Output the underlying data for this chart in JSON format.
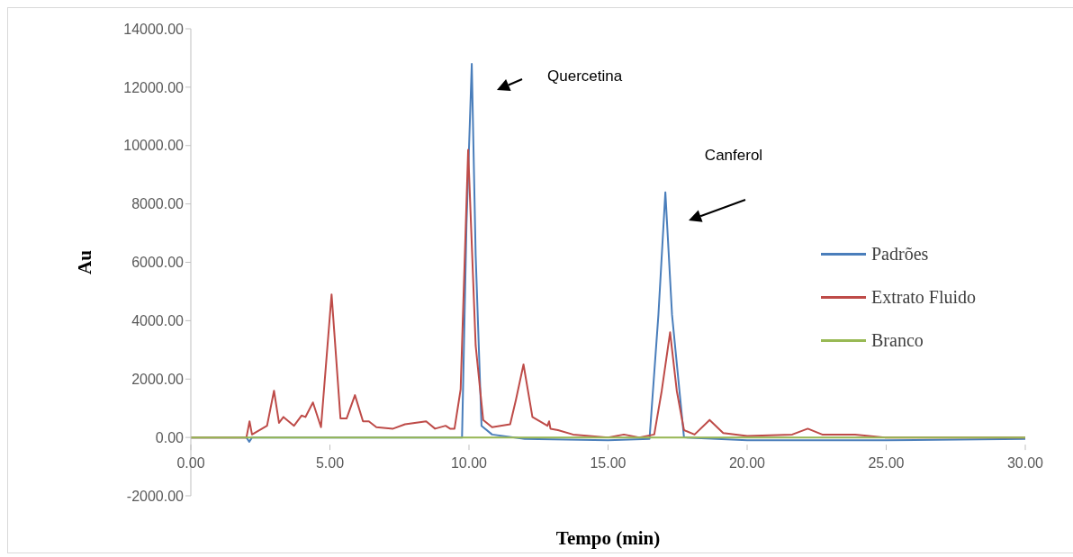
{
  "chart_data": {
    "type": "line",
    "xlabel": "Tempo (min)",
    "ylabel": "Au",
    "xlim": [
      0,
      30
    ],
    "xticks": [
      {
        "value": 0,
        "label": "0.00"
      },
      {
        "value": 5,
        "label": "5.00"
      },
      {
        "value": 10,
        "label": "10.00"
      },
      {
        "value": 15,
        "label": "15.00"
      },
      {
        "value": 20,
        "label": "20.00"
      },
      {
        "value": 25,
        "label": "25.00"
      },
      {
        "value": 30,
        "label": "30.00"
      }
    ],
    "ylim": [
      -2000,
      14000
    ],
    "yticks": [
      {
        "value": -2000,
        "label": "-2000.00"
      },
      {
        "value": 0,
        "label": "0.00"
      },
      {
        "value": 2000,
        "label": "2000.00"
      },
      {
        "value": 4000,
        "label": "4000.00"
      },
      {
        "value": 6000,
        "label": "6000.00"
      },
      {
        "value": 8000,
        "label": "8000.00"
      },
      {
        "value": 10000,
        "label": "10000.00"
      },
      {
        "value": 12000,
        "label": "12000.00"
      },
      {
        "value": 14000,
        "label": "14000.00"
      }
    ],
    "legend": "right",
    "annotations": [
      "Quercetina",
      "Canferol"
    ],
    "series": [
      {
        "name": "Padrões",
        "color": "#4a7ebb",
        "x": [
          0,
          2.0,
          2.1,
          2.2,
          5,
          9.75,
          9.91,
          10.1,
          10.24,
          10.45,
          10.83,
          12,
          15,
          16.49,
          16.81,
          17.06,
          17.3,
          17.73,
          20,
          22,
          25,
          30
        ],
        "values": [
          0,
          0,
          -150,
          0,
          0,
          0,
          7300,
          12800,
          6250,
          400,
          100,
          -50,
          -100,
          -50,
          4200,
          8400,
          4200,
          0,
          -100,
          -100,
          -100,
          -50
        ]
      },
      {
        "name": "Extrato Fluido",
        "color": "#be4b48",
        "x": [
          0,
          2.0,
          2.11,
          2.2,
          2.74,
          2.99,
          3.17,
          3.33,
          3.71,
          3.98,
          4.12,
          4.39,
          4.68,
          5.06,
          5.38,
          5.6,
          5.9,
          6.19,
          6.4,
          6.67,
          7.27,
          7.7,
          8.46,
          8.78,
          9.16,
          9.32,
          9.48,
          9.7,
          9.97,
          10.24,
          10.51,
          10.83,
          11.48,
          11.69,
          11.96,
          12.28,
          12.82,
          12.88,
          12.93,
          13.2,
          13.74,
          15,
          15.57,
          16.12,
          16.66,
          16.93,
          17.23,
          17.47,
          17.73,
          18.11,
          18.65,
          19.14,
          20,
          21.62,
          22.18,
          22.7,
          23.88,
          24.95,
          30
        ],
        "values": [
          0,
          0,
          550,
          100,
          400,
          1600,
          500,
          700,
          400,
          750,
          700,
          1200,
          350,
          4900,
          650,
          650,
          1450,
          550,
          550,
          350,
          300,
          450,
          550,
          300,
          400,
          300,
          300,
          1650,
          9850,
          3150,
          600,
          350,
          450,
          1300,
          2500,
          700,
          400,
          550,
          300,
          250,
          100,
          0,
          100,
          0,
          100,
          1600,
          3600,
          1600,
          250,
          100,
          600,
          150,
          50,
          100,
          300,
          100,
          100,
          0,
          0
        ]
      },
      {
        "name": "Branco",
        "color": "#98b954",
        "x": [
          0,
          5,
          10,
          15,
          20,
          25,
          30
        ],
        "values": [
          0,
          0,
          0,
          0,
          0,
          0,
          0
        ]
      }
    ]
  }
}
